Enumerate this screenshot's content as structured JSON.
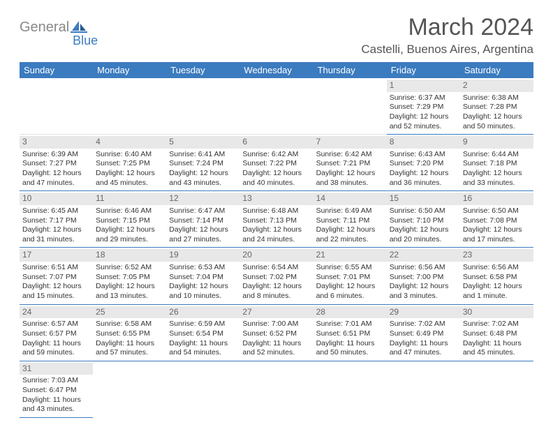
{
  "brand": {
    "name_part1": "General",
    "name_part2": "Blue",
    "color_gray": "#888888",
    "color_blue": "#3b7bbf"
  },
  "title": {
    "month": "March 2024",
    "location": "Castelli, Buenos Aires, Argentina"
  },
  "header_row_color": "#3b7bbf",
  "header_text_color": "#ffffff",
  "cell_border_color": "#3b7bbf",
  "daynum_bg": "#e8e8e8",
  "weekdays": [
    "Sunday",
    "Monday",
    "Tuesday",
    "Wednesday",
    "Thursday",
    "Friday",
    "Saturday"
  ],
  "days": {
    "1": {
      "sunrise": "6:37 AM",
      "sunset": "7:29 PM",
      "daylight": "12 hours and 52 minutes."
    },
    "2": {
      "sunrise": "6:38 AM",
      "sunset": "7:28 PM",
      "daylight": "12 hours and 50 minutes."
    },
    "3": {
      "sunrise": "6:39 AM",
      "sunset": "7:27 PM",
      "daylight": "12 hours and 47 minutes."
    },
    "4": {
      "sunrise": "6:40 AM",
      "sunset": "7:25 PM",
      "daylight": "12 hours and 45 minutes."
    },
    "5": {
      "sunrise": "6:41 AM",
      "sunset": "7:24 PM",
      "daylight": "12 hours and 43 minutes."
    },
    "6": {
      "sunrise": "6:42 AM",
      "sunset": "7:22 PM",
      "daylight": "12 hours and 40 minutes."
    },
    "7": {
      "sunrise": "6:42 AM",
      "sunset": "7:21 PM",
      "daylight": "12 hours and 38 minutes."
    },
    "8": {
      "sunrise": "6:43 AM",
      "sunset": "7:20 PM",
      "daylight": "12 hours and 36 minutes."
    },
    "9": {
      "sunrise": "6:44 AM",
      "sunset": "7:18 PM",
      "daylight": "12 hours and 33 minutes."
    },
    "10": {
      "sunrise": "6:45 AM",
      "sunset": "7:17 PM",
      "daylight": "12 hours and 31 minutes."
    },
    "11": {
      "sunrise": "6:46 AM",
      "sunset": "7:15 PM",
      "daylight": "12 hours and 29 minutes."
    },
    "12": {
      "sunrise": "6:47 AM",
      "sunset": "7:14 PM",
      "daylight": "12 hours and 27 minutes."
    },
    "13": {
      "sunrise": "6:48 AM",
      "sunset": "7:13 PM",
      "daylight": "12 hours and 24 minutes."
    },
    "14": {
      "sunrise": "6:49 AM",
      "sunset": "7:11 PM",
      "daylight": "12 hours and 22 minutes."
    },
    "15": {
      "sunrise": "6:50 AM",
      "sunset": "7:10 PM",
      "daylight": "12 hours and 20 minutes."
    },
    "16": {
      "sunrise": "6:50 AM",
      "sunset": "7:08 PM",
      "daylight": "12 hours and 17 minutes."
    },
    "17": {
      "sunrise": "6:51 AM",
      "sunset": "7:07 PM",
      "daylight": "12 hours and 15 minutes."
    },
    "18": {
      "sunrise": "6:52 AM",
      "sunset": "7:05 PM",
      "daylight": "12 hours and 13 minutes."
    },
    "19": {
      "sunrise": "6:53 AM",
      "sunset": "7:04 PM",
      "daylight": "12 hours and 10 minutes."
    },
    "20": {
      "sunrise": "6:54 AM",
      "sunset": "7:02 PM",
      "daylight": "12 hours and 8 minutes."
    },
    "21": {
      "sunrise": "6:55 AM",
      "sunset": "7:01 PM",
      "daylight": "12 hours and 6 minutes."
    },
    "22": {
      "sunrise": "6:56 AM",
      "sunset": "7:00 PM",
      "daylight": "12 hours and 3 minutes."
    },
    "23": {
      "sunrise": "6:56 AM",
      "sunset": "6:58 PM",
      "daylight": "12 hours and 1 minute."
    },
    "24": {
      "sunrise": "6:57 AM",
      "sunset": "6:57 PM",
      "daylight": "11 hours and 59 minutes."
    },
    "25": {
      "sunrise": "6:58 AM",
      "sunset": "6:55 PM",
      "daylight": "11 hours and 57 minutes."
    },
    "26": {
      "sunrise": "6:59 AM",
      "sunset": "6:54 PM",
      "daylight": "11 hours and 54 minutes."
    },
    "27": {
      "sunrise": "7:00 AM",
      "sunset": "6:52 PM",
      "daylight": "11 hours and 52 minutes."
    },
    "28": {
      "sunrise": "7:01 AM",
      "sunset": "6:51 PM",
      "daylight": "11 hours and 50 minutes."
    },
    "29": {
      "sunrise": "7:02 AM",
      "sunset": "6:49 PM",
      "daylight": "11 hours and 47 minutes."
    },
    "30": {
      "sunrise": "7:02 AM",
      "sunset": "6:48 PM",
      "daylight": "11 hours and 45 minutes."
    },
    "31": {
      "sunrise": "7:03 AM",
      "sunset": "6:47 PM",
      "daylight": "11 hours and 43 minutes."
    }
  },
  "labels": {
    "sunrise": "Sunrise:",
    "sunset": "Sunset:",
    "daylight": "Daylight:"
  },
  "grid": [
    [
      null,
      null,
      null,
      null,
      null,
      "1",
      "2"
    ],
    [
      "3",
      "4",
      "5",
      "6",
      "7",
      "8",
      "9"
    ],
    [
      "10",
      "11",
      "12",
      "13",
      "14",
      "15",
      "16"
    ],
    [
      "17",
      "18",
      "19",
      "20",
      "21",
      "22",
      "23"
    ],
    [
      "24",
      "25",
      "26",
      "27",
      "28",
      "29",
      "30"
    ],
    [
      "31",
      null,
      null,
      null,
      null,
      null,
      null
    ]
  ]
}
